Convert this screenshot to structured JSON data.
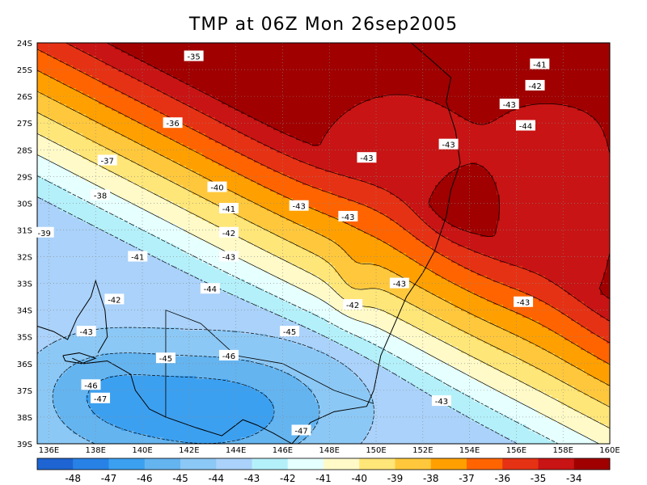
{
  "title": "TMP at 06Z Mon 26sep2005",
  "x_ticks": [
    "136E",
    "138E",
    "140E",
    "142E",
    "144E",
    "146E",
    "148E",
    "150E",
    "152E",
    "154E",
    "156E",
    "158E",
    "160E"
  ],
  "y_ticks": [
    "24S",
    "25S",
    "26S",
    "27S",
    "28S",
    "29S",
    "30S",
    "31S",
    "32S",
    "33S",
    "34S",
    "35S",
    "36S",
    "37S",
    "38S",
    "39S"
  ],
  "contour_labels": [
    {
      "text": "-35",
      "lon": 142.2,
      "lat": 24.5
    },
    {
      "text": "-36",
      "lon": 141.3,
      "lat": 27.0
    },
    {
      "text": "-37",
      "lon": 138.5,
      "lat": 28.4
    },
    {
      "text": "-38",
      "lon": 138.2,
      "lat": 29.7
    },
    {
      "text": "-39",
      "lon": 135.8,
      "lat": 31.1
    },
    {
      "text": "-40",
      "lon": 143.2,
      "lat": 29.4
    },
    {
      "text": "-41",
      "lon": 143.7,
      "lat": 30.2
    },
    {
      "text": "-42",
      "lon": 143.7,
      "lat": 31.1
    },
    {
      "text": "-43",
      "lon": 143.7,
      "lat": 32.0
    },
    {
      "text": "-44",
      "lon": 142.9,
      "lat": 33.2
    },
    {
      "text": "-45",
      "lon": 146.3,
      "lat": 34.8
    },
    {
      "text": "-46",
      "lon": 143.7,
      "lat": 35.7
    },
    {
      "text": "-45",
      "lon": 141.0,
      "lat": 35.8
    },
    {
      "text": "-47",
      "lon": 146.8,
      "lat": 38.5
    },
    {
      "text": "-46",
      "lon": 137.8,
      "lat": 36.8
    },
    {
      "text": "-47",
      "lon": 138.2,
      "lat": 37.3
    },
    {
      "text": "-43",
      "lon": 137.6,
      "lat": 34.8
    },
    {
      "text": "-42",
      "lon": 138.8,
      "lat": 33.6
    },
    {
      "text": "-41",
      "lon": 139.8,
      "lat": 32.0
    },
    {
      "text": "-43",
      "lon": 149.6,
      "lat": 28.3
    },
    {
      "text": "-43",
      "lon": 146.7,
      "lat": 30.1
    },
    {
      "text": "-43",
      "lon": 148.8,
      "lat": 30.5
    },
    {
      "text": "-42",
      "lon": 149.0,
      "lat": 33.8
    },
    {
      "text": "-43",
      "lon": 151.0,
      "lat": 33.0
    },
    {
      "text": "-43",
      "lon": 152.8,
      "lat": 37.4
    },
    {
      "text": "-43",
      "lon": 156.3,
      "lat": 33.7
    },
    {
      "text": "-43",
      "lon": 153.1,
      "lat": 27.8
    },
    {
      "text": "-43",
      "lon": 155.7,
      "lat": 26.3
    },
    {
      "text": "-44",
      "lon": 156.4,
      "lat": 27.1
    },
    {
      "text": "-42",
      "lon": 156.8,
      "lat": 25.6
    },
    {
      "text": "-41",
      "lon": 157.0,
      "lat": 24.8
    }
  ],
  "colorbar": {
    "colors": [
      "#1e64d2",
      "#2882e6",
      "#3ca0f0",
      "#64b4f0",
      "#8cc8f5",
      "#aad2fa",
      "#b4f0fa",
      "#e6ffff",
      "#fffac8",
      "#ffe678",
      "#ffc83c",
      "#ffa000",
      "#ff6400",
      "#e63214",
      "#c81414",
      "#a00000"
    ],
    "ticks": [
      "-48",
      "-47",
      "-46",
      "-45",
      "-44",
      "-43",
      "-42",
      "-41",
      "-40",
      "-39",
      "-38",
      "-37",
      "-36",
      "-35",
      "-34"
    ]
  },
  "field": {
    "lon_range": [
      135.5,
      160
    ],
    "lat_range": [
      24,
      39
    ],
    "levels": [
      -48,
      -47,
      -46,
      -45,
      -44,
      -43,
      -42,
      -41,
      -40,
      -39,
      -38,
      -37,
      -36,
      -35,
      -34
    ]
  }
}
